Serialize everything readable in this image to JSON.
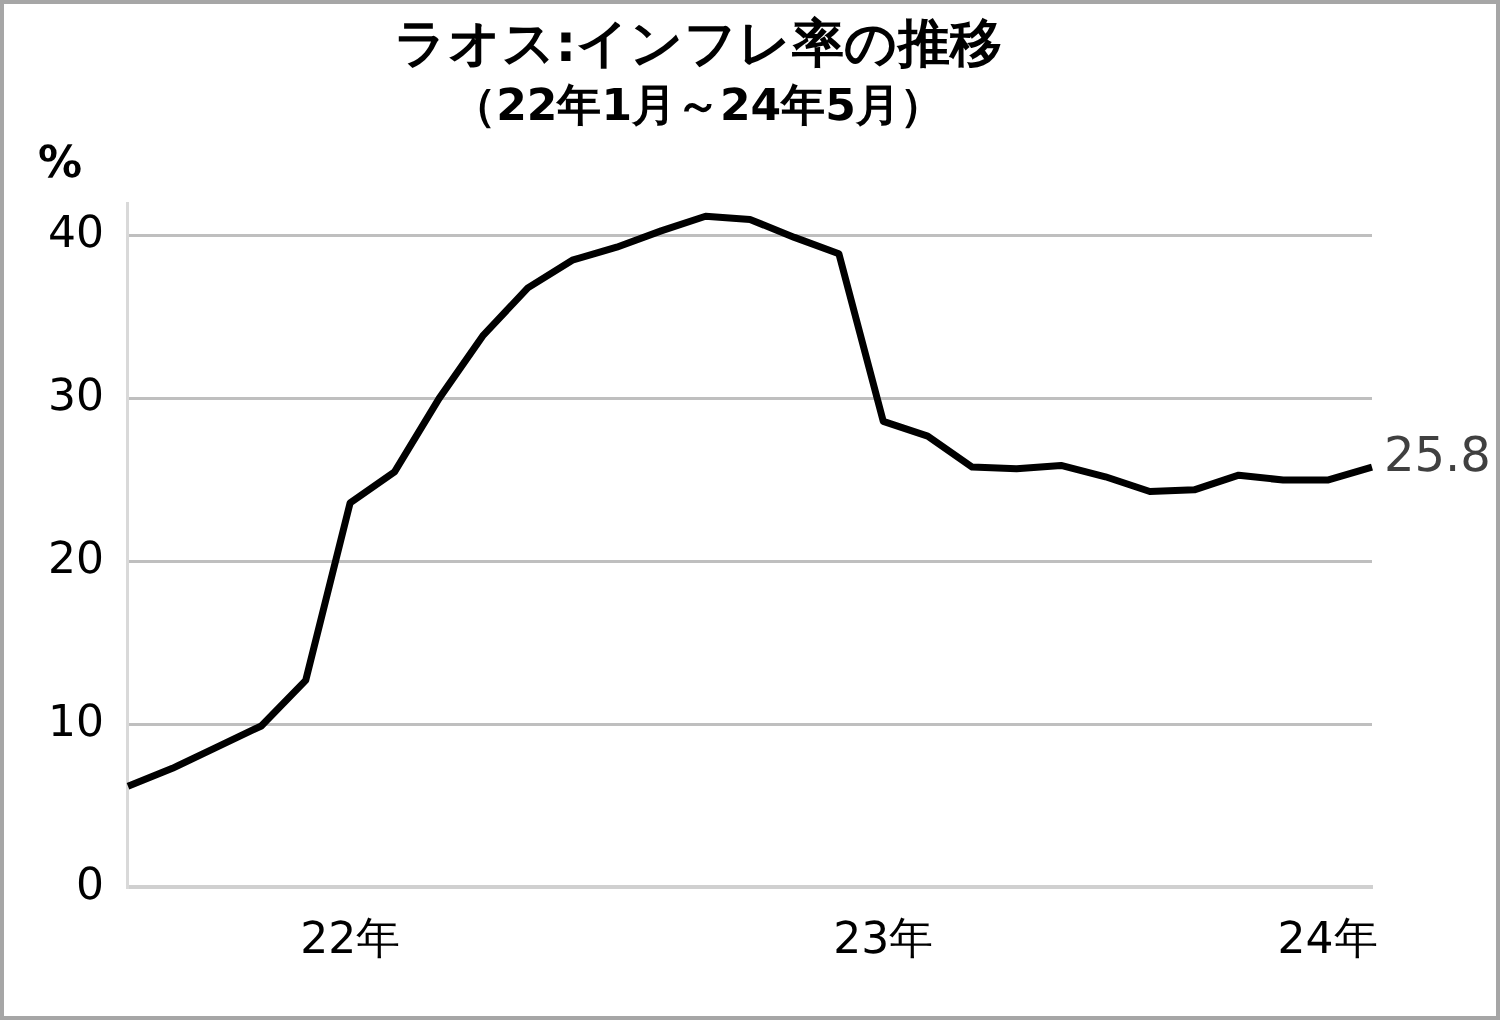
{
  "chart_data": {
    "type": "line",
    "title": "ラオス:インフレ率の推移",
    "subtitle": "（22年1月～24年5月）",
    "ylabel": "%",
    "categories": [
      null,
      null,
      null,
      null,
      null,
      "22年",
      null,
      null,
      null,
      null,
      null,
      null,
      null,
      null,
      null,
      null,
      null,
      "23年",
      null,
      null,
      null,
      null,
      null,
      null,
      null,
      null,
      null,
      "24年",
      null
    ],
    "series": [
      {
        "color": "#000000",
        "values": [
          6.2,
          7.3,
          8.6,
          9.9,
          12.7,
          23.6,
          25.5,
          30.0,
          33.9,
          36.8,
          38.5,
          39.3,
          40.3,
          41.2,
          41.0,
          39.9,
          38.9,
          28.6,
          27.7,
          25.8,
          25.7,
          25.9,
          25.2,
          24.3,
          24.4,
          25.3,
          25.0,
          25.0,
          25.8
        ],
        "value_labels": [
          null,
          null,
          null,
          null,
          null,
          null,
          null,
          null,
          null,
          null,
          null,
          null,
          null,
          null,
          null,
          null,
          null,
          null,
          null,
          null,
          null,
          null,
          null,
          null,
          null,
          null,
          null,
          null,
          "25.8"
        ]
      }
    ],
    "ylim": [
      0,
      42
    ],
    "yticks": [
      0,
      10,
      20,
      30,
      40
    ],
    "grid": "y",
    "legend": false,
    "marker": "none",
    "line_style": "solid"
  }
}
